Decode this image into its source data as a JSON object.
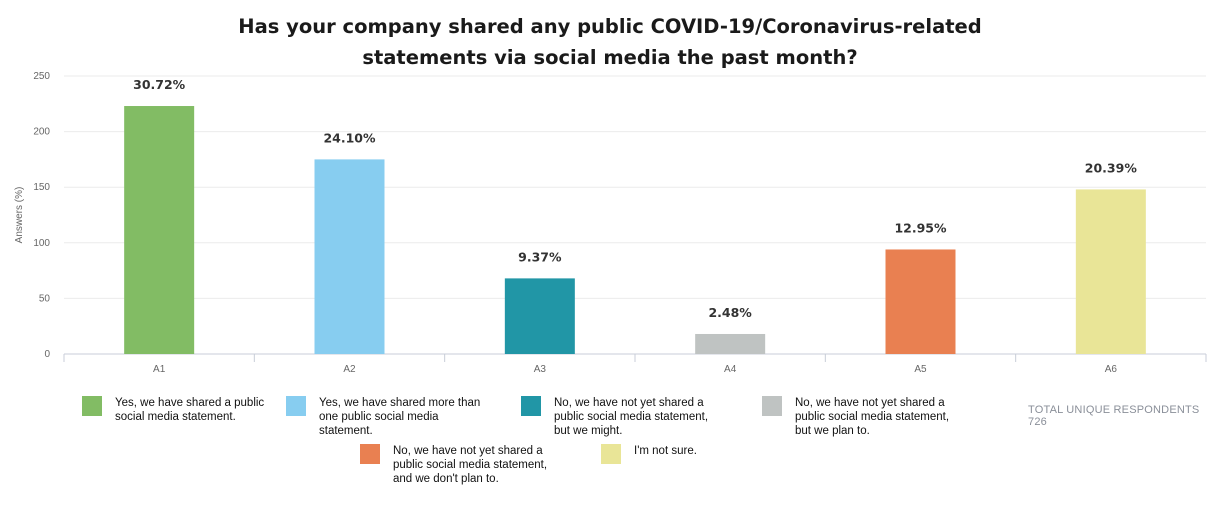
{
  "chart_data": {
    "type": "bar",
    "title": [
      "Has your company shared any public COVID-19/Coronavirus-related",
      "statements via social media the past month?"
    ],
    "ylabel": "Answers (%)",
    "xlabel": "",
    "ylim": [
      0,
      250
    ],
    "yticks": [
      0,
      50,
      100,
      150,
      200,
      250
    ],
    "grid": true,
    "categories": [
      "A1",
      "A2",
      "A3",
      "A4",
      "A5",
      "A6"
    ],
    "values": [
      223,
      175,
      68,
      18,
      94,
      148
    ],
    "data_labels": [
      "30.72%",
      "24.10%",
      "9.37%",
      "2.48%",
      "12.95%",
      "20.39%"
    ],
    "colors": [
      "#82bc64",
      "#87cdf0",
      "#2196a6",
      "#bfc3c2",
      "#e98051",
      "#e9e597"
    ],
    "legend": [
      "Yes, we have shared a public social media statement.",
      "Yes, we have shared more than one public social media statement.",
      "No, we have not yet shared a public social media statement, but we might.",
      "No, we have not yet shared a public social media statement, but we plan to.",
      "No, we have not yet shared a public social media statement, and we don't plan to.",
      "I'm not sure."
    ],
    "legend_placement": "bottom"
  },
  "total_respondents_label": "TOTAL UNIQUE RESPONDENTS",
  "total_respondents": "726"
}
